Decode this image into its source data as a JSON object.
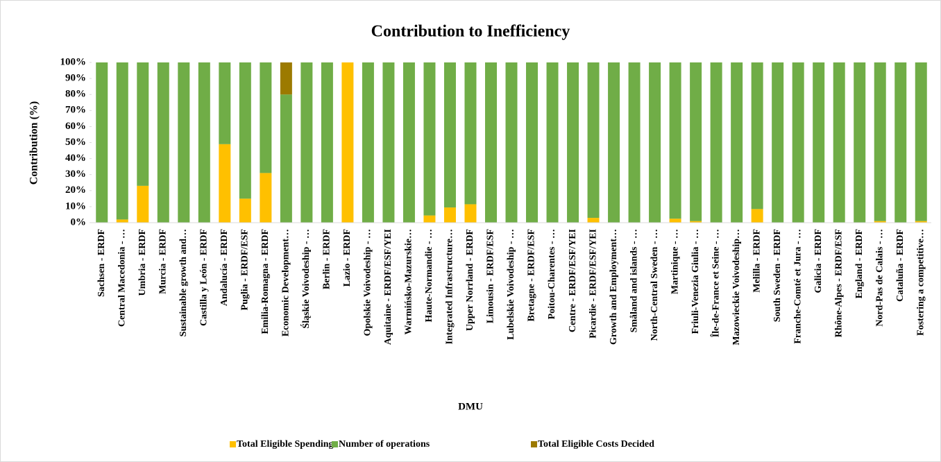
{
  "chart_data": {
    "type": "stacked_bar",
    "title": "Contribution to Inefficiency",
    "xlabel": "DMU",
    "ylabel": "Contribution (%)",
    "categories": [
      "Sachsen - ERDF",
      "Central Macedonia - …",
      "Umbria - ERDF",
      "Murcia - ERDF",
      "Sustainable growth and…",
      "Castilla y León - ERDF",
      "Andalucía - ERDF",
      "Puglia - ERDF/ESF",
      "Emilia-Romagna - ERDF",
      "Economic Development…",
      "Śląskie Voivodeship - …",
      "Berlin - ERDF",
      "Lazio - ERDF",
      "Opolskie Voivodeship - …",
      "Aquitaine - ERDF/ESF/YEI",
      "Warmińsko-Mazurskie…",
      "Haute-Normandie - …",
      "Integrated Infrastructure…",
      "Upper Norrland - ERDF",
      "Limousin - ERDF/ESF",
      "Lubelskie Voivodeship - …",
      "Bretagne - ERDF/ESF",
      "Poitou-Charentes - …",
      "Centre - ERDF/ESF/YEI",
      "Picardie - ERDF/ESF/YEI",
      "Growth and Employment…",
      "Småland and islands - …",
      "North-Central Sweden - …",
      "Martinique - …",
      "Friuli-Venezia Giulia - …",
      "Île-de-France et Seine - …",
      "Mazowieckie Voivodeship…",
      "Melilla - ERDF",
      "South Sweden - ERDF",
      "Franche-Comté et Jura - …",
      "Galicia - ERDF",
      "Rhône-Alpes - ERDF/ESF",
      "England - ERDF",
      "Nord-Pas de Calais - …",
      "Cataluña - ERDF",
      "Fostering a competitive…"
    ],
    "series": [
      {
        "name": "Total Eligible Spending",
        "color": "#ffc000",
        "values": [
          0,
          2,
          23,
          0,
          0,
          0,
          49,
          15,
          31,
          0,
          0,
          0,
          100,
          0,
          0,
          0,
          4.5,
          9.5,
          11.5,
          0,
          0,
          0,
          0,
          0,
          3,
          0,
          0,
          0,
          2.5,
          1,
          0,
          0,
          8.5,
          0,
          0,
          0,
          0,
          0,
          1,
          0,
          1
        ]
      },
      {
        "name": "Number of operations",
        "color": "#70ad47",
        "values": [
          100,
          98,
          77,
          100,
          100,
          100,
          51,
          85,
          69,
          80,
          100,
          100,
          0,
          100,
          100,
          100,
          95.5,
          90.5,
          88.5,
          100,
          100,
          100,
          100,
          100,
          97,
          100,
          100,
          100,
          97.5,
          99,
          100,
          100,
          91.5,
          100,
          100,
          100,
          100,
          100,
          99,
          100,
          99
        ]
      },
      {
        "name": "Total Eligible Costs Decided",
        "color": "#9c7a00",
        "values": [
          0,
          0,
          0,
          0,
          0,
          0,
          0,
          0,
          0,
          20,
          0,
          0,
          0,
          0,
          0,
          0,
          0,
          0,
          0,
          0,
          0,
          0,
          0,
          0,
          0,
          0,
          0,
          0,
          0,
          0,
          0,
          0,
          0,
          0,
          0,
          0,
          0,
          0,
          0,
          0,
          0
        ]
      }
    ],
    "ylim": [
      0,
      100
    ],
    "yticks": [
      {
        "value": 0,
        "label": "0%"
      },
      {
        "value": 10,
        "label": "10%"
      },
      {
        "value": 20,
        "label": "20%"
      },
      {
        "value": 30,
        "label": "30%"
      },
      {
        "value": 40,
        "label": "40%"
      },
      {
        "value": 50,
        "label": "50%"
      },
      {
        "value": 60,
        "label": "60%"
      },
      {
        "value": 70,
        "label": "70%"
      },
      {
        "value": 80,
        "label": "80%"
      },
      {
        "value": 90,
        "label": "90%"
      },
      {
        "value": 100,
        "label": "100%"
      }
    ],
    "grid": false,
    "legend": "bottom"
  }
}
